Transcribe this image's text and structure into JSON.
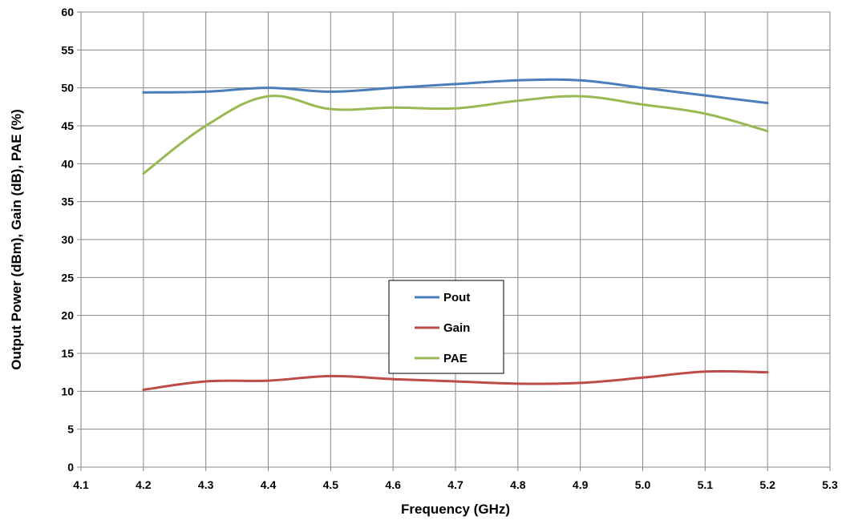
{
  "chart_data": {
    "type": "line",
    "xlabel": "Frequency (GHz)",
    "ylabel": "Output Power (dBm), Gain (dB), PAE (%)",
    "xlim": [
      4.1,
      5.3
    ],
    "ylim": [
      0,
      60
    ],
    "x_ticks": [
      "4.1",
      "4.2",
      "4.3",
      "4.4",
      "4.5",
      "4.6",
      "4.7",
      "4.8",
      "4.9",
      "5.0",
      "5.1",
      "5.2",
      "5.3"
    ],
    "y_ticks": [
      "0",
      "5",
      "10",
      "15",
      "20",
      "25",
      "30",
      "35",
      "40",
      "45",
      "50",
      "55",
      "60"
    ],
    "grid": true,
    "legend_position": "center",
    "x": [
      4.2,
      4.3,
      4.4,
      4.5,
      4.6,
      4.7,
      4.8,
      4.9,
      5.0,
      5.1,
      5.2
    ],
    "series": [
      {
        "name": "Pout",
        "color": "#4a7ebb",
        "values": [
          49.4,
          49.5,
          50.0,
          49.5,
          50.0,
          50.5,
          51.0,
          51.0,
          50.0,
          49.0,
          48.0
        ]
      },
      {
        "name": "Gain",
        "color": "#be4b48",
        "values": [
          10.2,
          11.3,
          11.4,
          12.0,
          11.6,
          11.3,
          11.0,
          11.1,
          11.8,
          12.6,
          12.5
        ]
      },
      {
        "name": "PAE",
        "color": "#98b954",
        "values": [
          38.7,
          45.0,
          48.9,
          47.2,
          47.4,
          47.3,
          48.3,
          48.9,
          47.8,
          46.6,
          44.3
        ]
      }
    ]
  }
}
